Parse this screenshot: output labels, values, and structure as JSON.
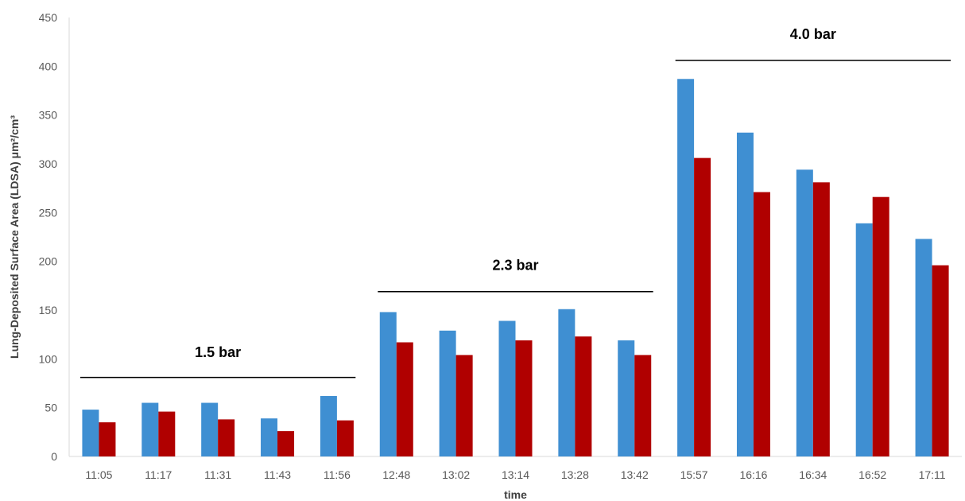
{
  "chart_data": {
    "type": "bar",
    "title": "",
    "xlabel": "time",
    "ylabel": "Lung-Deposited Surface Area (LDSA) μm²/cm³",
    "ylim": [
      0,
      450
    ],
    "yticks": [
      0,
      50,
      100,
      150,
      200,
      250,
      300,
      350,
      400,
      450
    ],
    "grid": false,
    "legend": "none",
    "categories": [
      "11:05",
      "11:17",
      "11:31",
      "11:43",
      "11:56",
      "12:48",
      "13:02",
      "13:14",
      "13:28",
      "13:42",
      "15:57",
      "16:16",
      "16:34",
      "16:52",
      "17:11"
    ],
    "series": [
      {
        "color": "#3F8FD2",
        "values": [
          48,
          55,
          55,
          39,
          62,
          148,
          129,
          139,
          151,
          119,
          387,
          332,
          294,
          239,
          223
        ]
      },
      {
        "color": "#B00000",
        "values": [
          35,
          46,
          38,
          26,
          37,
          117,
          104,
          119,
          123,
          104,
          306,
          271,
          281,
          266,
          196
        ]
      }
    ],
    "annotations": [
      {
        "label": "1.5 bar",
        "from_category": "11:05",
        "to_category": "11:56",
        "y": 81,
        "label_y": 102
      },
      {
        "label": "2.3 bar",
        "from_category": "12:48",
        "to_category": "13:42",
        "y": 169,
        "label_y": 191
      },
      {
        "label": "4.0 bar",
        "from_category": "15:57",
        "to_category": "17:11",
        "y": 406,
        "label_y": 428
      }
    ]
  }
}
